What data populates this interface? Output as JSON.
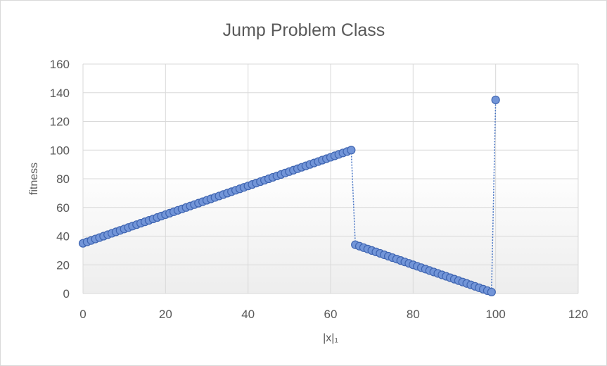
{
  "chart_data": {
    "type": "scatter",
    "title": "Jump Problem Class",
    "xlabel": "|x|₁",
    "ylabel": "fitness",
    "xlim": [
      0,
      120
    ],
    "ylim": [
      0,
      160
    ],
    "xticks": [
      0,
      20,
      40,
      60,
      80,
      100,
      120
    ],
    "yticks": [
      0,
      20,
      40,
      60,
      80,
      100,
      120,
      140,
      160
    ],
    "grid": true,
    "legend": "none",
    "colors": {
      "marker_fill": "#7295d8",
      "marker_stroke": "#3e64b0",
      "line": "#4472c4",
      "grid": "#d9d9d9"
    },
    "series": [
      {
        "x": [
          0,
          1,
          2,
          3,
          4,
          5,
          6,
          7,
          8,
          9,
          10,
          11,
          12,
          13,
          14,
          15,
          16,
          17,
          18,
          19,
          20,
          21,
          22,
          23,
          24,
          25,
          26,
          27,
          28,
          29,
          30,
          31,
          32,
          33,
          34,
          35,
          36,
          37,
          38,
          39,
          40,
          41,
          42,
          43,
          44,
          45,
          46,
          47,
          48,
          49,
          50,
          51,
          52,
          53,
          54,
          55,
          56,
          57,
          58,
          59,
          60,
          61,
          62,
          63,
          64,
          65,
          66,
          67,
          68,
          69,
          70,
          71,
          72,
          73,
          74,
          75,
          76,
          77,
          78,
          79,
          80,
          81,
          82,
          83,
          84,
          85,
          86,
          87,
          88,
          89,
          90,
          91,
          92,
          93,
          94,
          95,
          96,
          97,
          98,
          99,
          100
        ],
        "y": [
          35,
          36,
          37,
          38,
          39,
          40,
          41,
          42,
          43,
          44,
          45,
          46,
          47,
          48,
          49,
          50,
          51,
          52,
          53,
          54,
          55,
          56,
          57,
          58,
          59,
          60,
          61,
          62,
          63,
          64,
          65,
          66,
          67,
          68,
          69,
          70,
          71,
          72,
          73,
          74,
          75,
          76,
          77,
          78,
          79,
          80,
          81,
          82,
          83,
          84,
          85,
          86,
          87,
          88,
          89,
          90,
          91,
          92,
          93,
          94,
          95,
          96,
          97,
          98,
          99,
          100,
          34,
          33,
          32,
          31,
          30,
          29,
          28,
          27,
          26,
          25,
          24,
          23,
          22,
          21,
          20,
          19,
          18,
          17,
          16,
          15,
          14,
          13,
          12,
          11,
          10,
          9,
          8,
          7,
          6,
          5,
          4,
          3,
          2,
          1,
          135
        ]
      }
    ]
  }
}
